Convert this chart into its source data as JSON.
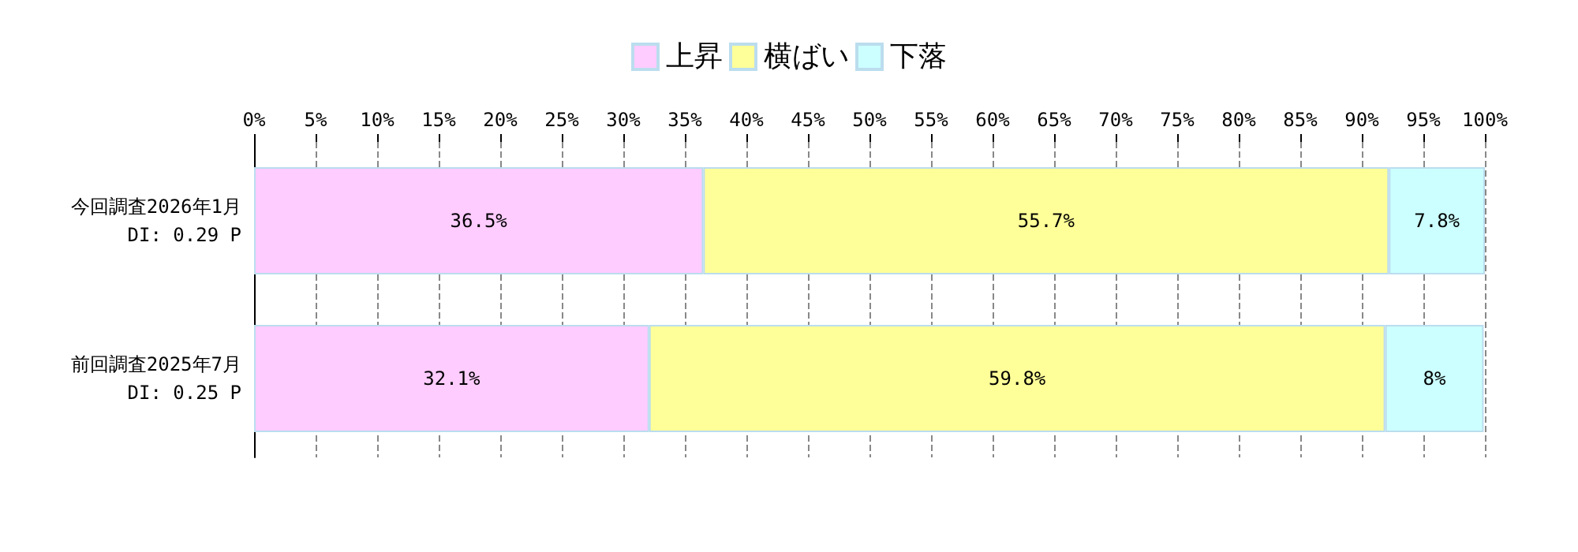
{
  "chart_data": {
    "type": "bar",
    "orientation": "horizontal",
    "stacked": true,
    "categories": [
      "今回調査2026年1月\nDI: 0.29 P",
      "前回調査2025年7月\nDI: 0.25 P"
    ],
    "series": [
      {
        "name": "上昇",
        "color": "#ffccff",
        "values": [
          36.5,
          32.1
        ],
        "value_labels": [
          "36.5%",
          "32.1%"
        ]
      },
      {
        "name": "横ばい",
        "color": "#ffff99",
        "values": [
          55.7,
          59.8
        ],
        "value_labels": [
          "55.7%",
          "59.8%"
        ]
      },
      {
        "name": "下落",
        "color": "#ccffff",
        "values": [
          7.8,
          8
        ],
        "value_labels": [
          "7.8%",
          "8%"
        ]
      }
    ],
    "xlim": [
      0,
      100
    ],
    "xticks": [
      {
        "value": 0,
        "label": "0%"
      },
      {
        "value": 5,
        "label": "5%"
      },
      {
        "value": 10,
        "label": "10%"
      },
      {
        "value": 15,
        "label": "15%"
      },
      {
        "value": 20,
        "label": "20%"
      },
      {
        "value": 25,
        "label": "25%"
      },
      {
        "value": 30,
        "label": "30%"
      },
      {
        "value": 35,
        "label": "35%"
      },
      {
        "value": 40,
        "label": "40%"
      },
      {
        "value": 45,
        "label": "45%"
      },
      {
        "value": 50,
        "label": "50%"
      },
      {
        "value": 55,
        "label": "55%"
      },
      {
        "value": 60,
        "label": "60%"
      },
      {
        "value": 65,
        "label": "65%"
      },
      {
        "value": 70,
        "label": "70%"
      },
      {
        "value": 75,
        "label": "75%"
      },
      {
        "value": 80,
        "label": "80%"
      },
      {
        "value": 85,
        "label": "85%"
      },
      {
        "value": 90,
        "label": "90%"
      },
      {
        "value": 95,
        "label": "95%"
      },
      {
        "value": 100,
        "label": "100%"
      }
    ],
    "grid": "x",
    "legend": "top"
  }
}
